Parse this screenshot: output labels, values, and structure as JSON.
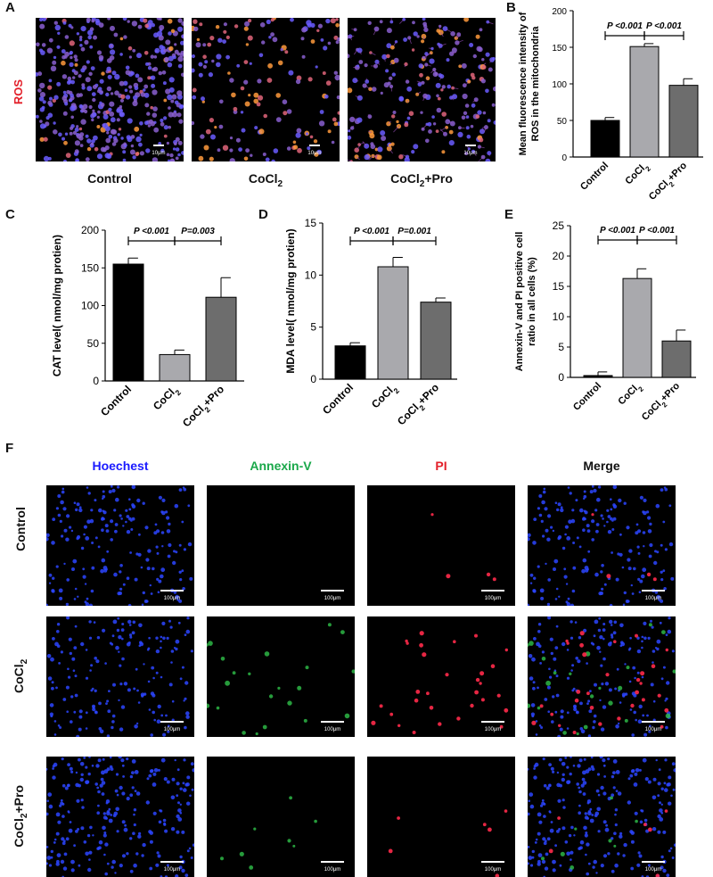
{
  "panel_letters": {
    "A": "A",
    "B": "B",
    "C": "C",
    "D": "D",
    "E": "E",
    "F": "F"
  },
  "panelA": {
    "row_label": "ROS",
    "captions": [
      "Control",
      "CoCl2",
      "CoCl2+Pro"
    ],
    "scale": "10μm"
  },
  "panelF": {
    "columns": [
      "Hoechest",
      "Annexin-V",
      "PI",
      "Merge"
    ],
    "rows": [
      "Control",
      "CoCl2",
      "CoCl2+Pro"
    ],
    "scale": "100μm",
    "colors": {
      "Hoechest": "#1a1aff",
      "Annexin-V": "#1aa84a",
      "PI": "#e3202a",
      "Merge": "#111111"
    }
  },
  "chart_data": [
    {
      "panel": "B",
      "type": "bar",
      "categories": [
        "Control",
        "CoCl2",
        "CoCl2+Pro"
      ],
      "values": [
        50,
        151,
        98
      ],
      "errors": [
        4,
        4,
        9
      ],
      "colors": [
        "#000000",
        "#a9a9ad",
        "#6d6d6d"
      ],
      "ylabel": "Mean fluorescence intensity of ROS in the mitochondria",
      "ylim": [
        0,
        200
      ],
      "yticks": [
        0,
        50,
        100,
        150,
        200
      ],
      "annotations": [
        "P <0.001",
        "P <0.001"
      ]
    },
    {
      "panel": "C",
      "type": "bar",
      "categories": [
        "Control",
        "CoCl2",
        "CoCl2+Pro"
      ],
      "values": [
        155,
        35,
        111
      ],
      "errors": [
        8,
        6,
        26
      ],
      "colors": [
        "#000000",
        "#a9a9ad",
        "#6d6d6d"
      ],
      "ylabel": "CAT level( nmol/mg protien)",
      "ylim": [
        0,
        200
      ],
      "yticks": [
        0,
        50,
        100,
        150,
        200
      ],
      "annotations": [
        "P <0.001",
        "P=0.003"
      ]
    },
    {
      "panel": "D",
      "type": "bar",
      "categories": [
        "Control",
        "CoCl2",
        "CoCl2+Pro"
      ],
      "values": [
        3.2,
        10.8,
        7.4
      ],
      "errors": [
        0.3,
        0.9,
        0.4
      ],
      "colors": [
        "#000000",
        "#a9a9ad",
        "#6d6d6d"
      ],
      "ylabel": "MDA level( nmol/mg protien)",
      "ylim": [
        0,
        15
      ],
      "yticks": [
        0,
        5,
        10,
        15
      ],
      "annotations": [
        "P <0.001",
        "P=0.001"
      ]
    },
    {
      "panel": "E",
      "type": "bar",
      "categories": [
        "Control",
        "CoCl2",
        "CoCl2+Pro"
      ],
      "values": [
        0.3,
        16.3,
        6.0
      ],
      "errors": [
        0.6,
        1.6,
        1.8
      ],
      "colors": [
        "#000000",
        "#a9a9ad",
        "#6d6d6d"
      ],
      "ylabel": "Annexin-V and PI positive cell ratio in all cells (%)",
      "ylim": [
        0,
        25
      ],
      "yticks": [
        0,
        5,
        10,
        15,
        20,
        25
      ],
      "annotations": [
        "P <0.001",
        "P <0.001"
      ]
    }
  ]
}
